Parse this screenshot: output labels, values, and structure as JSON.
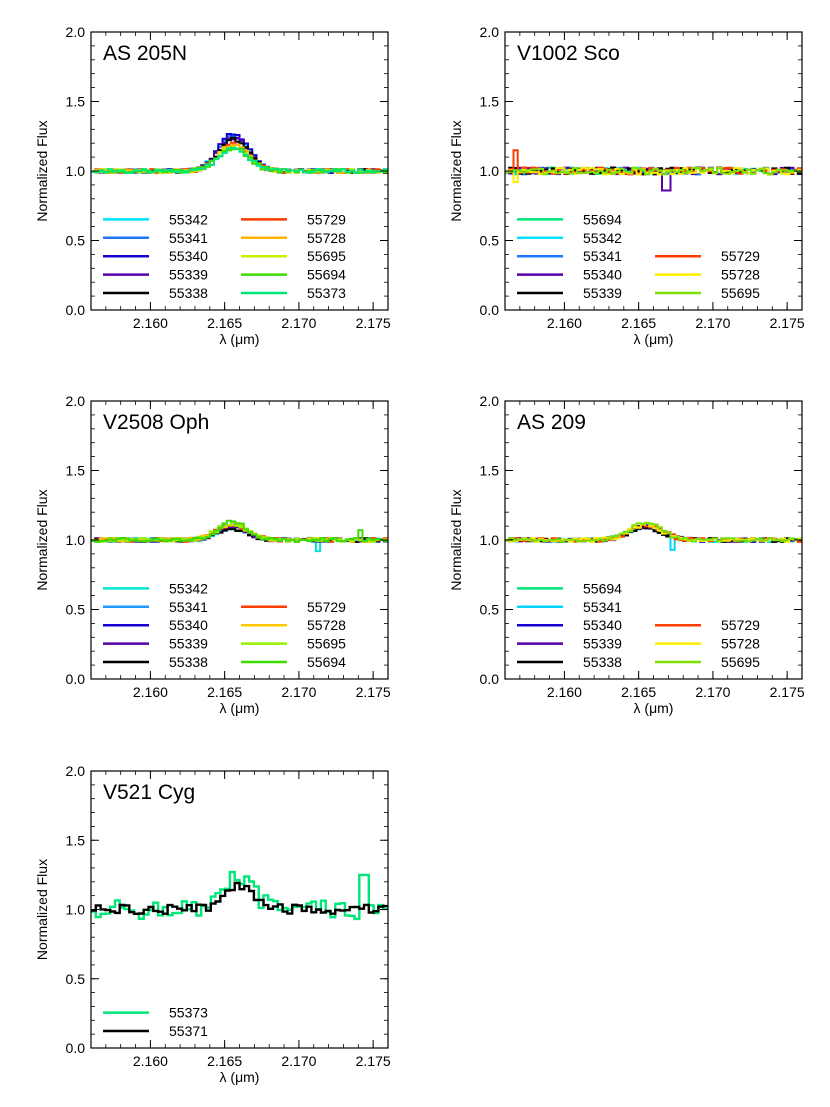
{
  "chart_data": [
    {
      "type": "line",
      "title": "AS 205N",
      "xlabel": "λ (μm)",
      "ylabel": "Normalized Flux",
      "xlim": [
        2.156,
        2.176
      ],
      "ylim": [
        0.0,
        2.0
      ],
      "xticks": [
        "2.160",
        "2.165",
        "2.170",
        "2.175"
      ],
      "yticks": [
        "0.0",
        "0.5",
        "1.0",
        "1.5",
        "2.0"
      ],
      "line": {
        "center": 2.1656,
        "width": 0.001
      },
      "legend": {
        "left": [
          {
            "name": "55342",
            "color": "#00e5ff",
            "amp": 0.26
          },
          {
            "name": "55341",
            "color": "#1e78ff",
            "amp": 0.25
          },
          {
            "name": "55340",
            "color": "#1400d2",
            "amp": 0.27
          },
          {
            "name": "55339",
            "color": "#5a00aa",
            "amp": 0.24
          },
          {
            "name": "55338",
            "color": "#000000",
            "amp": 0.23
          }
        ],
        "right": [
          {
            "name": "55729",
            "color": "#ff3c00",
            "amp": 0.2
          },
          {
            "name": "55728",
            "color": "#ffb400",
            "amp": 0.19
          },
          {
            "name": "55695",
            "color": "#c8f000",
            "amp": 0.18
          },
          {
            "name": "55694",
            "color": "#3cdc00",
            "amp": 0.17
          },
          {
            "name": "55373",
            "color": "#00e678",
            "amp": 0.16
          }
        ]
      }
    },
    {
      "type": "line",
      "title": "V1002 Sco",
      "xlabel": "λ (μm)",
      "ylabel": "Normalized Flux",
      "xlim": [
        2.156,
        2.176
      ],
      "ylim": [
        0.0,
        2.0
      ],
      "xticks": [
        "2.160",
        "2.165",
        "2.170",
        "2.175"
      ],
      "yticks": [
        "0.0",
        "0.5",
        "1.0",
        "1.5",
        "2.0"
      ],
      "line": {
        "center": 2.1656,
        "width": 0.001
      },
      "legend": {
        "left": [
          {
            "name": "55694",
            "color": "#00e678",
            "amp": 0.0
          },
          {
            "name": "55342",
            "color": "#00e5ff",
            "amp": 0.0
          },
          {
            "name": "55341",
            "color": "#1e78ff",
            "amp": 0.0
          },
          {
            "name": "55340",
            "color": "#5a00aa",
            "amp": 0.0
          },
          {
            "name": "55339",
            "color": "#000000",
            "amp": 0.0
          }
        ],
        "right": [
          {
            "name": "55729",
            "color": "#ff3c00",
            "amp": 0.0
          },
          {
            "name": "55728",
            "color": "#ffee00",
            "amp": 0.0
          },
          {
            "name": "55695",
            "color": "#7ce000",
            "amp": 0.0
          }
        ]
      }
    },
    {
      "type": "line",
      "title": "V2508 Oph",
      "xlabel": "λ (μm)",
      "ylabel": "Normalized Flux",
      "xlim": [
        2.156,
        2.176
      ],
      "ylim": [
        0.0,
        2.0
      ],
      "xticks": [
        "2.160",
        "2.165",
        "2.170",
        "2.175"
      ],
      "yticks": [
        "0.0",
        "0.5",
        "1.0",
        "1.5",
        "2.0"
      ],
      "line": {
        "center": 2.1655,
        "width": 0.001
      },
      "legend": {
        "left": [
          {
            "name": "55342",
            "color": "#00e5d0",
            "amp": 0.09
          },
          {
            "name": "55341",
            "color": "#1e9aff",
            "amp": 0.09
          },
          {
            "name": "55340",
            "color": "#1400d2",
            "amp": 0.1
          },
          {
            "name": "55339",
            "color": "#5a00aa",
            "amp": 0.09
          },
          {
            "name": "55338",
            "color": "#000000",
            "amp": 0.08
          }
        ],
        "right": [
          {
            "name": "55729",
            "color": "#ff3c00",
            "amp": 0.11
          },
          {
            "name": "55728",
            "color": "#ffc800",
            "amp": 0.12
          },
          {
            "name": "55695",
            "color": "#96f000",
            "amp": 0.12
          },
          {
            "name": "55694",
            "color": "#3cdc00",
            "amp": 0.13
          }
        ]
      }
    },
    {
      "type": "line",
      "title": "AS 209",
      "xlabel": "λ (μm)",
      "ylabel": "Normalized Flux",
      "xlim": [
        2.156,
        2.176
      ],
      "ylim": [
        0.0,
        2.0
      ],
      "xticks": [
        "2.160",
        "2.165",
        "2.170",
        "2.175"
      ],
      "yticks": [
        "0.0",
        "0.5",
        "1.0",
        "1.5",
        "2.0"
      ],
      "line": {
        "center": 2.1655,
        "width": 0.0011
      },
      "legend": {
        "left": [
          {
            "name": "55694",
            "color": "#00e678",
            "amp": 0.11
          },
          {
            "name": "55341",
            "color": "#00d4ff",
            "amp": 0.1
          },
          {
            "name": "55340",
            "color": "#1400d2",
            "amp": 0.1
          },
          {
            "name": "55339",
            "color": "#5a00aa",
            "amp": 0.1
          },
          {
            "name": "55338",
            "color": "#000000",
            "amp": 0.09
          }
        ],
        "right": [
          {
            "name": "55729",
            "color": "#ff3c00",
            "amp": 0.11
          },
          {
            "name": "55728",
            "color": "#ffee00",
            "amp": 0.11
          },
          {
            "name": "55695",
            "color": "#7ce000",
            "amp": 0.12
          }
        ]
      }
    },
    {
      "type": "line",
      "title": "V521 Cyg",
      "xlabel": "λ (μm)",
      "ylabel": "Normalized Flux",
      "xlim": [
        2.156,
        2.176
      ],
      "ylim": [
        0.0,
        2.0
      ],
      "xticks": [
        "2.160",
        "2.165",
        "2.170",
        "2.175"
      ],
      "yticks": [
        "0.0",
        "0.5",
        "1.0",
        "1.5",
        "2.0"
      ],
      "line": {
        "center": 2.1659,
        "width": 0.001
      },
      "legend": {
        "left": [
          {
            "name": "55373",
            "color": "#00e678",
            "amp": 0.22
          },
          {
            "name": "55371",
            "color": "#000000",
            "amp": 0.18
          }
        ],
        "right": []
      }
    }
  ]
}
